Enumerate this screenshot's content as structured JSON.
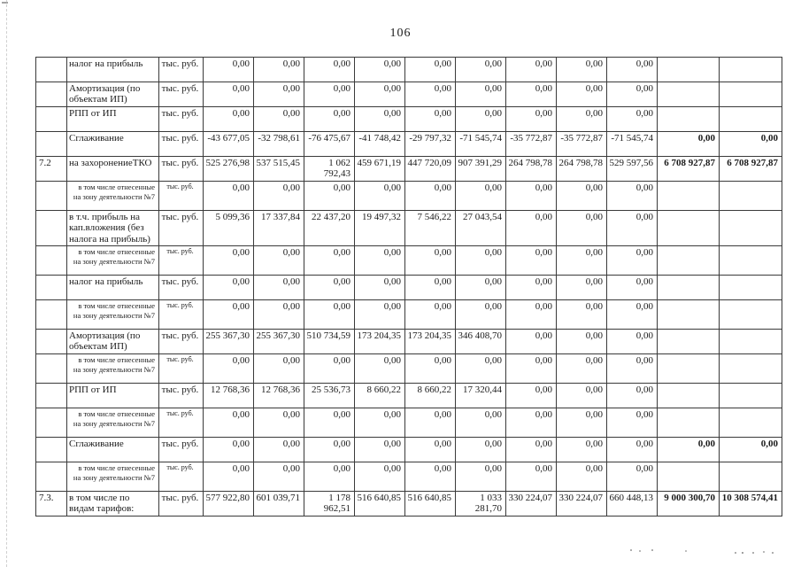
{
  "page": {
    "number": "106"
  },
  "table": {
    "rows": [
      {
        "num": "",
        "style": "normal",
        "label": "налог на прибыль",
        "unit": "тыс. руб.",
        "values": [
          "0,00",
          "0,00",
          "0,00",
          "0,00",
          "0,00",
          "0,00",
          "0,00",
          "0,00",
          "0,00"
        ],
        "total1": "",
        "total2": "",
        "totals_bold": false
      },
      {
        "num": "",
        "style": "normal",
        "label": "Амортизация (по объектам ИП)",
        "unit": "тыс. руб.",
        "values": [
          "0,00",
          "0,00",
          "0,00",
          "0,00",
          "0,00",
          "0,00",
          "0,00",
          "0,00",
          "0,00"
        ],
        "total1": "",
        "total2": "",
        "totals_bold": false
      },
      {
        "num": "",
        "style": "normal",
        "label": "РПП от ИП",
        "unit": "тыс. руб.",
        "values": [
          "0,00",
          "0,00",
          "0,00",
          "0,00",
          "0,00",
          "0,00",
          "0,00",
          "0,00",
          "0,00"
        ],
        "total1": "",
        "total2": "",
        "totals_bold": false
      },
      {
        "num": "",
        "style": "normal",
        "label": "Сглаживание",
        "unit": "тыс. руб.",
        "values": [
          "-43 677,05",
          "-32 798,61",
          "-76 475,67",
          "-41 748,42",
          "-29 797,32",
          "-71 545,74",
          "-35 772,87",
          "-35 772,87",
          "-71 545,74"
        ],
        "total1": "0,00",
        "total2": "0,00",
        "totals_bold": true
      },
      {
        "num": "7.2",
        "style": "normal",
        "label": "на захоронениеТКО",
        "unit": "тыс. руб.",
        "values": [
          "525 276,98",
          "537 515,45",
          "1 062 792,43",
          "459 671,19",
          "447 720,09",
          "907 391,29",
          "264 798,78",
          "264 798,78",
          "529 597,56"
        ],
        "total1": "6 708 927,87",
        "total2": "6 708 927,87",
        "totals_bold": true
      },
      {
        "num": "",
        "style": "sub",
        "label": "в том числе отнесенные на зону деятельности №7",
        "unit": "тыс. руб.",
        "values": [
          "0,00",
          "0,00",
          "0,00",
          "0,00",
          "0,00",
          "0,00",
          "0,00",
          "0,00",
          "0,00"
        ],
        "total1": "",
        "total2": "",
        "totals_bold": false
      },
      {
        "num": "",
        "style": "normal",
        "label": "в т.ч. прибыль на кап.вложения (без налога на прибыль)",
        "unit": "тыс. руб.",
        "values": [
          "5 099,36",
          "17 337,84",
          "22 437,20",
          "19 497,32",
          "7 546,22",
          "27 043,54",
          "0,00",
          "0,00",
          "0,00"
        ],
        "total1": "",
        "total2": "",
        "totals_bold": false
      },
      {
        "num": "",
        "style": "sub",
        "label": "в том числе отнесенные на зону деятельности №7",
        "unit": "тыс. руб.",
        "values": [
          "0,00",
          "0,00",
          "0,00",
          "0,00",
          "0,00",
          "0,00",
          "0,00",
          "0,00",
          "0,00"
        ],
        "total1": "",
        "total2": "",
        "totals_bold": false
      },
      {
        "num": "",
        "style": "normal",
        "label": "налог на прибыль",
        "unit": "тыс. руб.",
        "values": [
          "0,00",
          "0,00",
          "0,00",
          "0,00",
          "0,00",
          "0,00",
          "0,00",
          "0,00",
          "0,00"
        ],
        "total1": "",
        "total2": "",
        "totals_bold": false
      },
      {
        "num": "",
        "style": "sub",
        "label": "в том числе отнесенные на зону деятельности №7",
        "unit": "тыс. руб.",
        "values": [
          "0,00",
          "0,00",
          "0,00",
          "0,00",
          "0,00",
          "0,00",
          "0,00",
          "0,00",
          "0,00"
        ],
        "total1": "",
        "total2": "",
        "totals_bold": false
      },
      {
        "num": "",
        "style": "normal",
        "label": "Амортизация (по объектам ИП)",
        "unit": "тыс. руб.",
        "values": [
          "255 367,30",
          "255 367,30",
          "510 734,59",
          "173 204,35",
          "173 204,35",
          "346 408,70",
          "0,00",
          "0,00",
          "0,00"
        ],
        "total1": "",
        "total2": "",
        "totals_bold": false
      },
      {
        "num": "",
        "style": "sub",
        "label": "в том числе отнесенные на зону деятельности №7",
        "unit": "тыс. руб.",
        "values": [
          "0,00",
          "0,00",
          "0,00",
          "0,00",
          "0,00",
          "0,00",
          "0,00",
          "0,00",
          "0,00"
        ],
        "total1": "",
        "total2": "",
        "totals_bold": false
      },
      {
        "num": "",
        "style": "normal",
        "label": "РПП от ИП",
        "unit": "тыс. руб.",
        "values": [
          "12 768,36",
          "12 768,36",
          "25 536,73",
          "8 660,22",
          "8 660,22",
          "17 320,44",
          "0,00",
          "0,00",
          "0,00"
        ],
        "total1": "",
        "total2": "",
        "totals_bold": false
      },
      {
        "num": "",
        "style": "sub",
        "label": "в том числе отнесенные на зону деятельности №7",
        "unit": "тыс. руб.",
        "values": [
          "0,00",
          "0,00",
          "0,00",
          "0,00",
          "0,00",
          "0,00",
          "0,00",
          "0,00",
          "0,00"
        ],
        "total1": "",
        "total2": "",
        "totals_bold": false
      },
      {
        "num": "",
        "style": "normal",
        "label": "Сглаживание",
        "unit": "тыс. руб.",
        "values": [
          "0,00",
          "0,00",
          "0,00",
          "0,00",
          "0,00",
          "0,00",
          "0,00",
          "0,00",
          "0,00"
        ],
        "total1": "0,00",
        "total2": "0,00",
        "totals_bold": true
      },
      {
        "num": "",
        "style": "sub",
        "label": "в том числе отнесенные на зону деятельности №7",
        "unit": "тыс. руб.",
        "values": [
          "0,00",
          "0,00",
          "0,00",
          "0,00",
          "0,00",
          "0,00",
          "0,00",
          "0,00",
          "0,00"
        ],
        "total1": "",
        "total2": "",
        "totals_bold": false
      },
      {
        "num": "7.3.",
        "style": "normal",
        "label": "в том числе по видам тарифов:",
        "unit": "тыс. руб.",
        "values": [
          "577 922,80",
          "601 039,71",
          "1 178 962,51",
          "516 640,85",
          "516 640,85",
          "1 033 281,70",
          "330 224,07",
          "330 224,07",
          "660 448,13"
        ],
        "total1": "9 000 300,70",
        "total2": "10 308 574,41",
        "totals_bold": true
      }
    ]
  }
}
